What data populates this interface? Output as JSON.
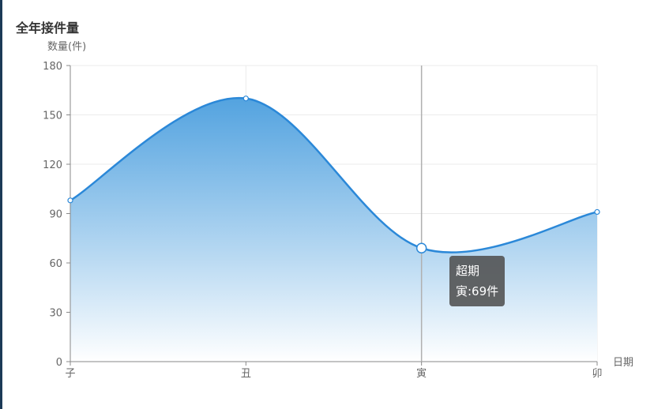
{
  "chart_data": {
    "type": "area",
    "title": "全年接件量",
    "ylabel": "数量(件)",
    "xlabel": "日期",
    "categories": [
      "子",
      "丑",
      "寅",
      "卯"
    ],
    "series": [
      {
        "values": [
          98,
          160,
          69,
          91
        ]
      }
    ],
    "ylim": [
      0,
      180
    ],
    "yticks": [
      0,
      30,
      60,
      90,
      120,
      150,
      180
    ],
    "smooth": true,
    "grid": true,
    "colors": {
      "line": "#2b88d8",
      "fill_top": "#4a9ede",
      "fill_bottom": "#ffffff",
      "tooltip_bg": "#505050"
    }
  },
  "tooltip": {
    "title": "超期",
    "text": "寅:69件",
    "category_index": 2
  }
}
